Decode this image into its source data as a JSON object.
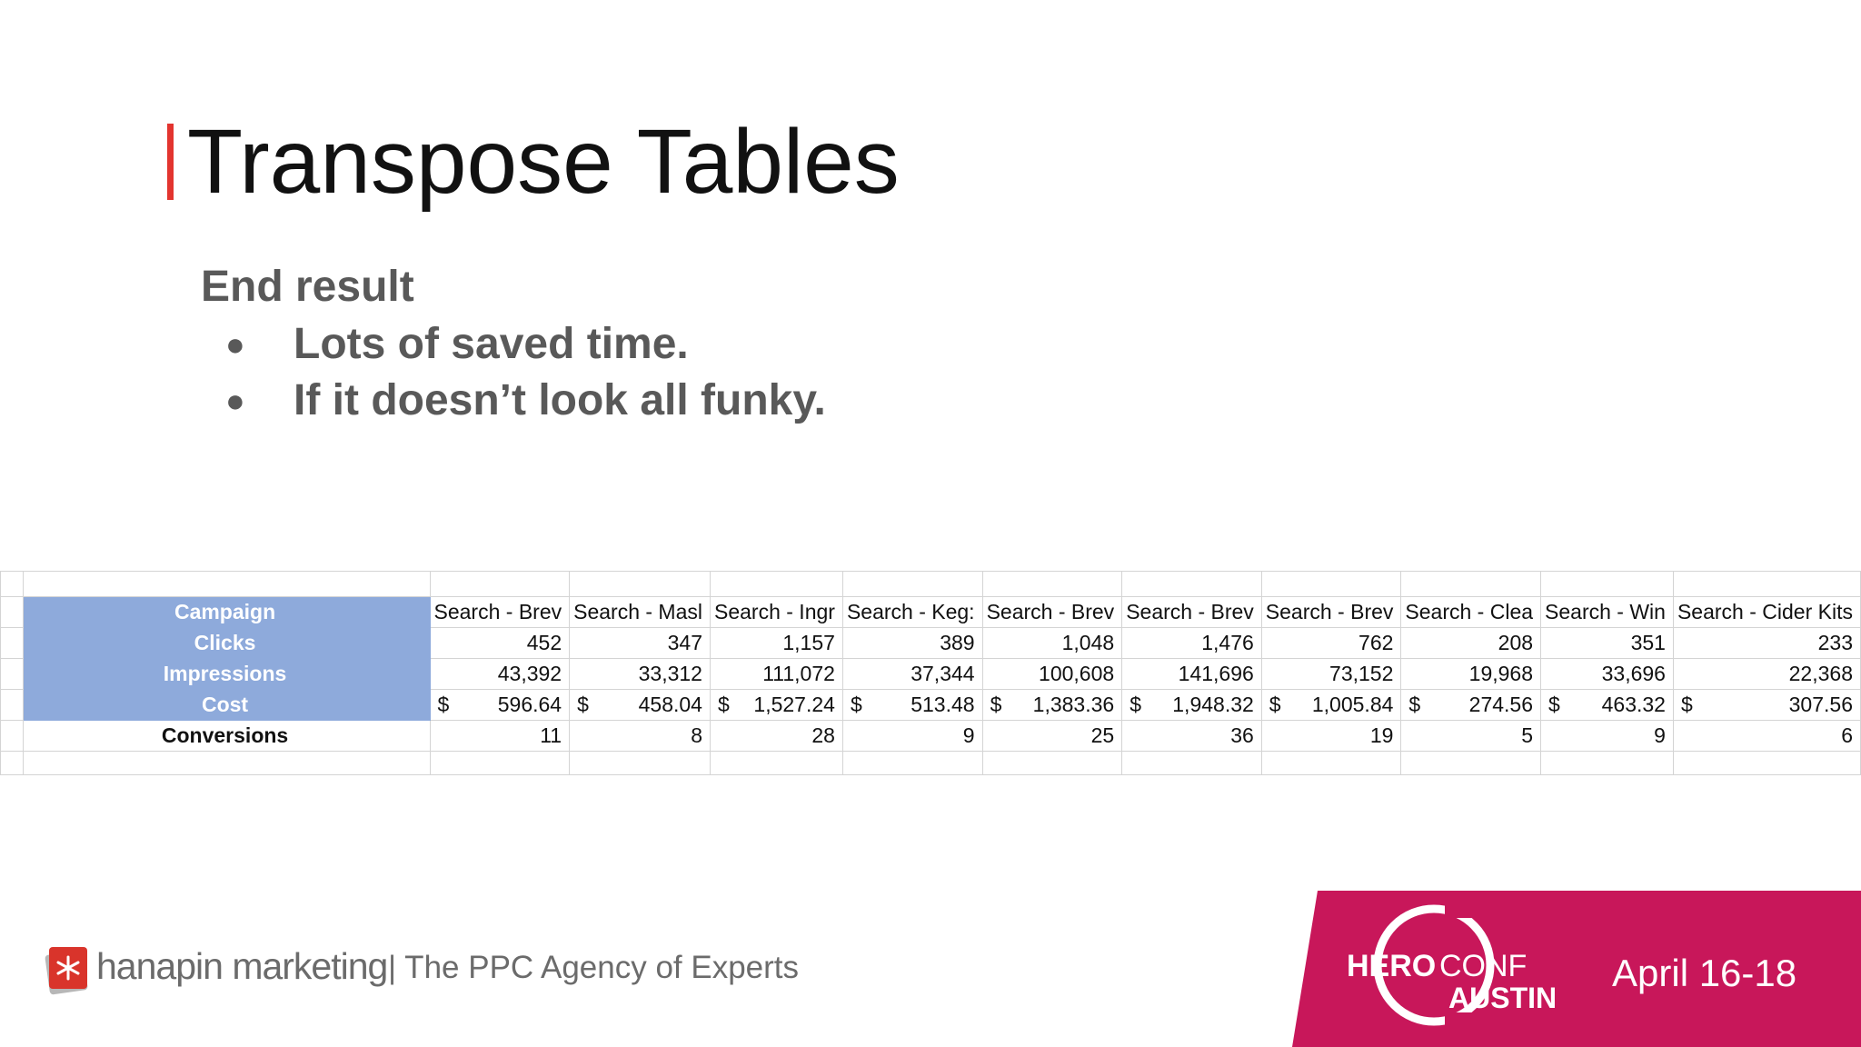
{
  "slide": {
    "title": "Transpose Tables",
    "subheading": "End result",
    "bullets": [
      "Lots of saved time.",
      "If it doesn’t look all funky."
    ]
  },
  "sheet": {
    "rows": [
      {
        "label": "Campaign",
        "highlighted": true,
        "cells": [
          "Search - Brev",
          "Search - Masl",
          "Search - Ingr",
          "Search - Keg:",
          "Search - Brev",
          "Search - Brev",
          "Search - Brev",
          "Search - Clea",
          "Search - Win",
          "Search - Cider Kits"
        ]
      },
      {
        "label": "Clicks",
        "highlighted": true,
        "cells": [
          "452",
          "347",
          "1,157",
          "389",
          "1,048",
          "1,476",
          "762",
          "208",
          "351",
          "233"
        ]
      },
      {
        "label": "Impressions",
        "highlighted": true,
        "cells": [
          "43,392",
          "33,312",
          "111,072",
          "37,344",
          "100,608",
          "141,696",
          "73,152",
          "19,968",
          "33,696",
          "22,368"
        ]
      },
      {
        "label": "Cost",
        "highlighted": true,
        "currency": "$",
        "cells": [
          "596.64",
          "458.04",
          "1,527.24",
          "513.48",
          "1,383.36",
          "1,948.32",
          "1,005.84",
          "274.56",
          "463.32",
          "307.56"
        ]
      },
      {
        "label": "Conversions",
        "highlighted": false,
        "cells": [
          "11",
          "8",
          "28",
          "9",
          "25",
          "36",
          "19",
          "5",
          "9",
          "6"
        ]
      }
    ],
    "highlight_color": "#8eaadb"
  },
  "footer": {
    "brand": "hanapin marketing",
    "tagline": "| The PPC Agency of Experts",
    "event_word_1": "HERO",
    "event_word_2": "CONF",
    "event_city": "AUSTIN",
    "event_dates": "April 16-18",
    "event_color": "#c8175a",
    "accent_color": "#e3342f"
  }
}
